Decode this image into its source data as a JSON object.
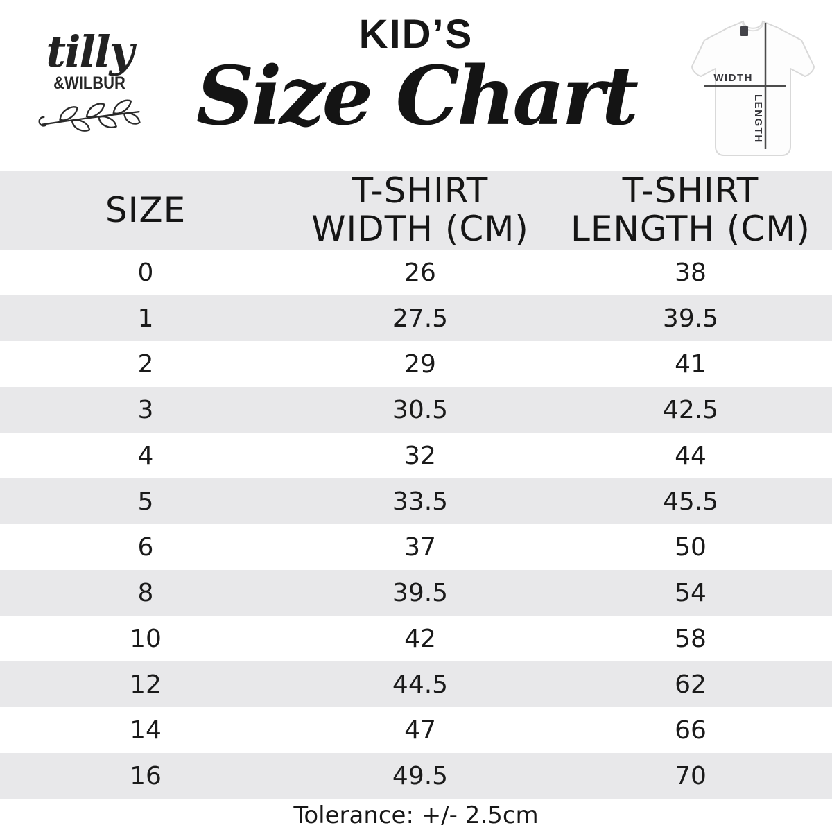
{
  "logo": {
    "script_text": "tilly",
    "caps_text": "&WILBUR"
  },
  "header": {
    "kicker": "KID’S",
    "title": "Size Chart"
  },
  "tee_diagram": {
    "width_label": "WIDTH",
    "length_label": "LENGTH"
  },
  "table": {
    "columns": [
      {
        "line1": "SIZE",
        "line2": ""
      },
      {
        "line1": "T-SHIRT",
        "line2": "WIDTH (CM)"
      },
      {
        "line1": "T-SHIRT",
        "line2": "LENGTH (CM)"
      }
    ],
    "rows": [
      {
        "size": "0",
        "width": "26",
        "length": "38"
      },
      {
        "size": "1",
        "width": "27.5",
        "length": "39.5"
      },
      {
        "size": "2",
        "width": "29",
        "length": "41"
      },
      {
        "size": "3",
        "width": "30.5",
        "length": "42.5"
      },
      {
        "size": "4",
        "width": "32",
        "length": "44"
      },
      {
        "size": "5",
        "width": "33.5",
        "length": "45.5"
      },
      {
        "size": "6",
        "width": "37",
        "length": "50"
      },
      {
        "size": "8",
        "width": "39.5",
        "length": "54"
      },
      {
        "size": "10",
        "width": "42",
        "length": "58"
      },
      {
        "size": "12",
        "width": "44.5",
        "length": "62"
      },
      {
        "size": "14",
        "width": "47",
        "length": "66"
      },
      {
        "size": "16",
        "width": "49.5",
        "length": "70"
      }
    ]
  },
  "footer": {
    "tolerance": "Tolerance: +/- 2.5cm"
  },
  "colors": {
    "stripe": "#e8e8ea",
    "ink": "#121212",
    "measure_line": "#4c4c4c"
  },
  "chart_data": {
    "type": "table",
    "title": "KID’S Size Chart",
    "columns": [
      "SIZE",
      "T-SHIRT WIDTH (CM)",
      "T-SHIRT LENGTH (CM)"
    ],
    "rows": [
      [
        0,
        26,
        38
      ],
      [
        1,
        27.5,
        39.5
      ],
      [
        2,
        29,
        41
      ],
      [
        3,
        30.5,
        42.5
      ],
      [
        4,
        32,
        44
      ],
      [
        5,
        33.5,
        45.5
      ],
      [
        6,
        37,
        50
      ],
      [
        8,
        39.5,
        54
      ],
      [
        10,
        42,
        58
      ],
      [
        12,
        44.5,
        62
      ],
      [
        14,
        47,
        66
      ],
      [
        16,
        49.5,
        70
      ]
    ],
    "note": "Tolerance: +/- 2.5cm"
  }
}
